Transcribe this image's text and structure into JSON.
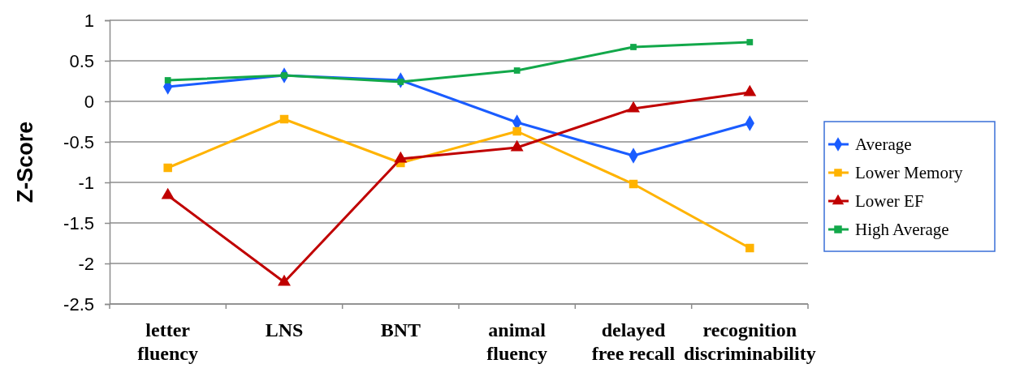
{
  "chart_data": {
    "type": "line",
    "ylabel": "Z-Score",
    "categories": [
      "letter\nfluency",
      "LNS",
      "BNT",
      "animal\nfluency",
      "delayed\nfree recall",
      "recognition\ndiscriminability"
    ],
    "ylim": [
      -2.5,
      1
    ],
    "yticks": [
      {
        "value": -2.5,
        "label": "-2.5"
      },
      {
        "value": -2,
        "label": "-2"
      },
      {
        "value": -1.5,
        "label": "-1.5"
      },
      {
        "value": -1,
        "label": "-1"
      },
      {
        "value": -0.5,
        "label": "-0.5"
      },
      {
        "value": 0,
        "label": "0"
      },
      {
        "value": 0.5,
        "label": "0.5"
      },
      {
        "value": 1,
        "label": "1"
      }
    ],
    "grid": "y",
    "legend": "right",
    "line_style": "solid",
    "series": [
      {
        "name": "Average",
        "color": "#1a5cff",
        "marker": "diamond",
        "values": [
          0.18,
          0.32,
          0.26,
          -0.26,
          -0.67,
          -0.27
        ]
      },
      {
        "name": "Lower Memory",
        "color": "#ffb300",
        "marker": "square",
        "values": [
          -0.82,
          -0.22,
          -0.76,
          -0.37,
          -1.02,
          -1.81
        ]
      },
      {
        "name": "Lower EF",
        "color": "#c00000",
        "marker": "triangle",
        "values": [
          -1.16,
          -2.23,
          -0.71,
          -0.57,
          -0.09,
          0.11
        ]
      },
      {
        "name": "High Average",
        "color": "#12a84a",
        "marker": "square",
        "values": [
          0.26,
          0.32,
          0.24,
          0.38,
          0.67,
          0.73
        ]
      }
    ]
  }
}
